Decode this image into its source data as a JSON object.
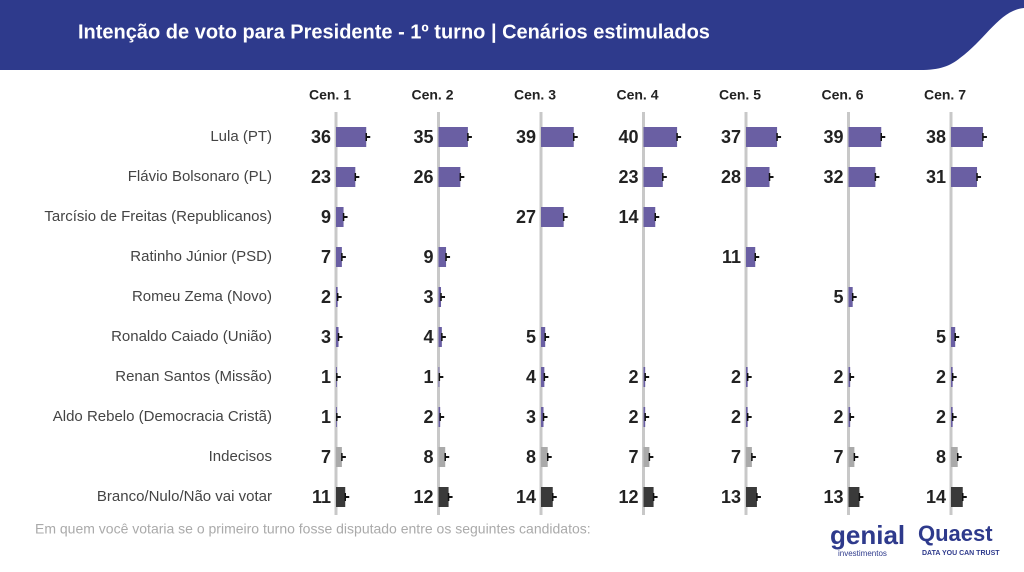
{
  "chart_data": {
    "type": "bar",
    "title": "Intenção de voto para Presidente - 1º turno | Cenários estimulados",
    "footnote": "Em quem você votaria se o primeiro turno fosse disputado entre os seguintes candidatos:",
    "logos": [
      {
        "name": "genial",
        "tagline": "investimentos"
      },
      {
        "name": "Quaest",
        "tagline": "DATA YOU CAN TRUST"
      }
    ],
    "categories": [
      "Lula (PT)",
      "Flávio Bolsonaro (PL)",
      "Tarcísio de Freitas (Republicanos)",
      "Ratinho Júnior (PSD)",
      "Romeu Zema (Novo)",
      "Ronaldo Caiado (União)",
      "Renan Santos (Missão)",
      "Aldo Rebelo (Democracia Cristã)",
      "Indecisos",
      "Branco/Nulo/Não vai votar"
    ],
    "category_colors": [
      "#6a5fa3",
      "#6a5fa3",
      "#6a5fa3",
      "#6a5fa3",
      "#6a5fa3",
      "#6a5fa3",
      "#6a5fa3",
      "#6a5fa3",
      "#aaaaaa",
      "#3a3a3a"
    ],
    "series": [
      {
        "name": "Cen. 1",
        "values": [
          36,
          23,
          9,
          7,
          2,
          3,
          1,
          1,
          7,
          11
        ]
      },
      {
        "name": "Cen. 2",
        "values": [
          35,
          26,
          null,
          9,
          3,
          4,
          1,
          2,
          8,
          12
        ]
      },
      {
        "name": "Cen. 3",
        "values": [
          39,
          null,
          27,
          null,
          null,
          5,
          4,
          3,
          8,
          14
        ]
      },
      {
        "name": "Cen. 4",
        "values": [
          40,
          23,
          14,
          null,
          null,
          null,
          2,
          2,
          7,
          12
        ]
      },
      {
        "name": "Cen. 5",
        "values": [
          37,
          28,
          null,
          11,
          null,
          null,
          2,
          2,
          7,
          13
        ]
      },
      {
        "name": "Cen. 6",
        "values": [
          39,
          32,
          null,
          null,
          5,
          null,
          2,
          2,
          7,
          13
        ]
      },
      {
        "name": "Cen. 7",
        "values": [
          38,
          31,
          null,
          null,
          null,
          5,
          2,
          2,
          8,
          14
        ]
      }
    ]
  }
}
